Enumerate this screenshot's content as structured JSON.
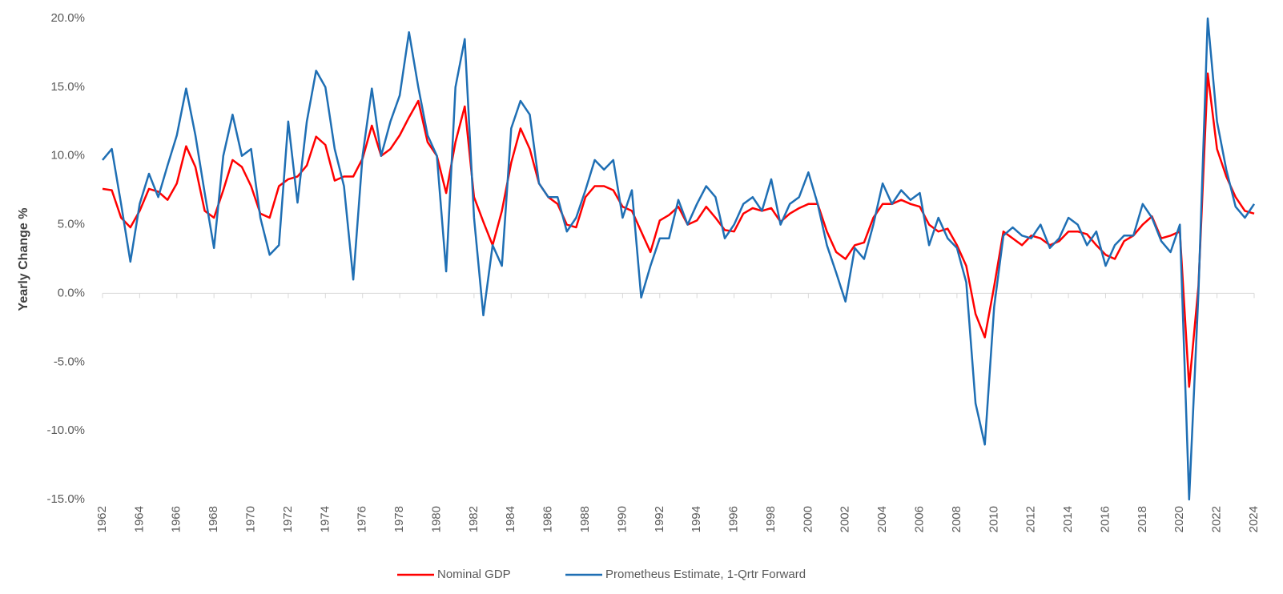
{
  "chart_data": {
    "type": "line",
    "y_label": "Yearly Change %",
    "x": [
      1962,
      1962.5,
      1963,
      1963.5,
      1964,
      1964.5,
      1965,
      1965.5,
      1966,
      1966.5,
      1967,
      1967.5,
      1968,
      1968.5,
      1969,
      1969.5,
      1970,
      1970.5,
      1971,
      1971.5,
      1972,
      1972.5,
      1973,
      1973.5,
      1974,
      1974.5,
      1975,
      1975.5,
      1976,
      1976.5,
      1977,
      1977.5,
      1978,
      1978.5,
      1979,
      1979.5,
      1980,
      1980.5,
      1981,
      1981.5,
      1982,
      1982.5,
      1983,
      1983.5,
      1984,
      1984.5,
      1985,
      1985.5,
      1986,
      1986.5,
      1987,
      1987.5,
      1988,
      1988.5,
      1989,
      1989.5,
      1990,
      1990.5,
      1991,
      1991.5,
      1992,
      1992.5,
      1993,
      1993.5,
      1994,
      1994.5,
      1995,
      1995.5,
      1996,
      1996.5,
      1997,
      1997.5,
      1998,
      1998.5,
      1999,
      1999.5,
      2000,
      2000.5,
      2001,
      2001.5,
      2002,
      2002.5,
      2003,
      2003.5,
      2004,
      2004.5,
      2005,
      2005.5,
      2006,
      2006.5,
      2007,
      2007.5,
      2008,
      2008.5,
      2009,
      2009.5,
      2010,
      2010.5,
      2011,
      2011.5,
      2012,
      2012.5,
      2013,
      2013.5,
      2014,
      2014.5,
      2015,
      2015.5,
      2016,
      2016.5,
      2017,
      2017.5,
      2018,
      2018.5,
      2019,
      2019.5,
      2020,
      2020.5,
      2021,
      2021.5,
      2022,
      2022.5,
      2023,
      2023.5,
      2024
    ],
    "series": [
      {
        "name": "Nominal GDP",
        "color": "#ff0000",
        "values": [
          7.6,
          7.5,
          5.5,
          4.8,
          6.0,
          7.6,
          7.4,
          6.8,
          8.0,
          10.7,
          9.2,
          6.0,
          5.5,
          7.5,
          9.7,
          9.2,
          7.8,
          5.8,
          5.5,
          7.8,
          8.3,
          8.5,
          9.3,
          11.4,
          10.8,
          8.2,
          8.5,
          8.5,
          9.8,
          12.2,
          10.0,
          10.5,
          11.5,
          12.8,
          14.0,
          11.0,
          10.0,
          7.3,
          11.0,
          13.6,
          7.0,
          5.2,
          3.5,
          6.0,
          9.5,
          12.0,
          10.5,
          8.0,
          7.0,
          6.5,
          5.0,
          4.8,
          7.0,
          7.8,
          7.8,
          7.5,
          6.3,
          6.0,
          4.5,
          3.0,
          5.3,
          5.7,
          6.3,
          5.0,
          5.3,
          6.3,
          5.5,
          4.6,
          4.5,
          5.8,
          6.2,
          6.0,
          6.2,
          5.2,
          5.8,
          6.2,
          6.5,
          6.5,
          4.5,
          3.0,
          2.5,
          3.5,
          3.7,
          5.5,
          6.5,
          6.5,
          6.8,
          6.5,
          6.3,
          5.0,
          4.5,
          4.7,
          3.5,
          2.0,
          -1.5,
          -3.2,
          0.5,
          4.5,
          4.0,
          3.5,
          4.2,
          4.0,
          3.5,
          3.8,
          4.5,
          4.5,
          4.3,
          3.5,
          2.8,
          2.5,
          3.8,
          4.2,
          5.0,
          5.6,
          4.0,
          4.2,
          4.5,
          -6.8,
          0.5,
          16.0,
          10.5,
          8.5,
          7.0,
          6.0,
          5.8
        ]
      },
      {
        "name": "Prometheus Estimate, 1-Qrtr Forward",
        "color": "#1f6fb4",
        "values": [
          9.7,
          10.5,
          6.5,
          2.3,
          6.5,
          8.7,
          7.0,
          9.3,
          11.5,
          14.9,
          11.5,
          7.3,
          3.3,
          10.0,
          13.0,
          10.0,
          10.5,
          5.5,
          2.8,
          3.5,
          12.5,
          6.6,
          12.5,
          16.2,
          15.0,
          10.5,
          7.8,
          1.0,
          10.0,
          14.9,
          10.0,
          12.5,
          14.4,
          19.0,
          15.0,
          11.5,
          10.0,
          1.6,
          15.0,
          18.5,
          5.5,
          -1.6,
          3.5,
          2.0,
          12.0,
          14.0,
          13.0,
          8.0,
          7.0,
          7.0,
          4.5,
          5.5,
          7.5,
          9.7,
          9.0,
          9.7,
          5.5,
          7.5,
          -0.3,
          2.0,
          4.0,
          4.0,
          6.8,
          5.0,
          6.5,
          7.8,
          7.0,
          4.0,
          5.0,
          6.5,
          7.0,
          6.0,
          8.3,
          5.0,
          6.5,
          7.0,
          8.8,
          6.5,
          3.5,
          1.5,
          -0.6,
          3.3,
          2.5,
          5.0,
          8.0,
          6.5,
          7.5,
          6.8,
          7.3,
          3.5,
          5.5,
          4.0,
          3.3,
          0.8,
          -8.0,
          -11.0,
          -1.0,
          4.2,
          4.8,
          4.2,
          4.0,
          5.0,
          3.3,
          4.0,
          5.5,
          5.0,
          3.5,
          4.5,
          2.0,
          3.5,
          4.2,
          4.2,
          6.5,
          5.5,
          3.8,
          3.0,
          5.0,
          -15.0,
          0.0,
          20.0,
          12.5,
          9.0,
          6.3,
          5.5,
          6.5
        ]
      }
    ],
    "xlim": [
      1962,
      2024
    ],
    "xticks": [
      1962,
      1964,
      1966,
      1968,
      1970,
      1972,
      1974,
      1976,
      1978,
      1980,
      1982,
      1984,
      1986,
      1988,
      1990,
      1992,
      1994,
      1996,
      1998,
      2000,
      2002,
      2004,
      2006,
      2008,
      2010,
      2012,
      2014,
      2016,
      2018,
      2020,
      2022,
      2024
    ],
    "ylim": [
      -15,
      20
    ],
    "yticks": [
      {
        "value": -15,
        "label": "-15.0%"
      },
      {
        "value": -10,
        "label": "-10.0%"
      },
      {
        "value": -5,
        "label": "-5.0%"
      },
      {
        "value": 0,
        "label": "0.0%"
      },
      {
        "value": 5,
        "label": "5.0%"
      },
      {
        "value": 10,
        "label": "10.0%"
      },
      {
        "value": 15,
        "label": "15.0%"
      },
      {
        "value": 20,
        "label": "20.0%"
      }
    ],
    "grid": false,
    "legend": "bottom"
  }
}
